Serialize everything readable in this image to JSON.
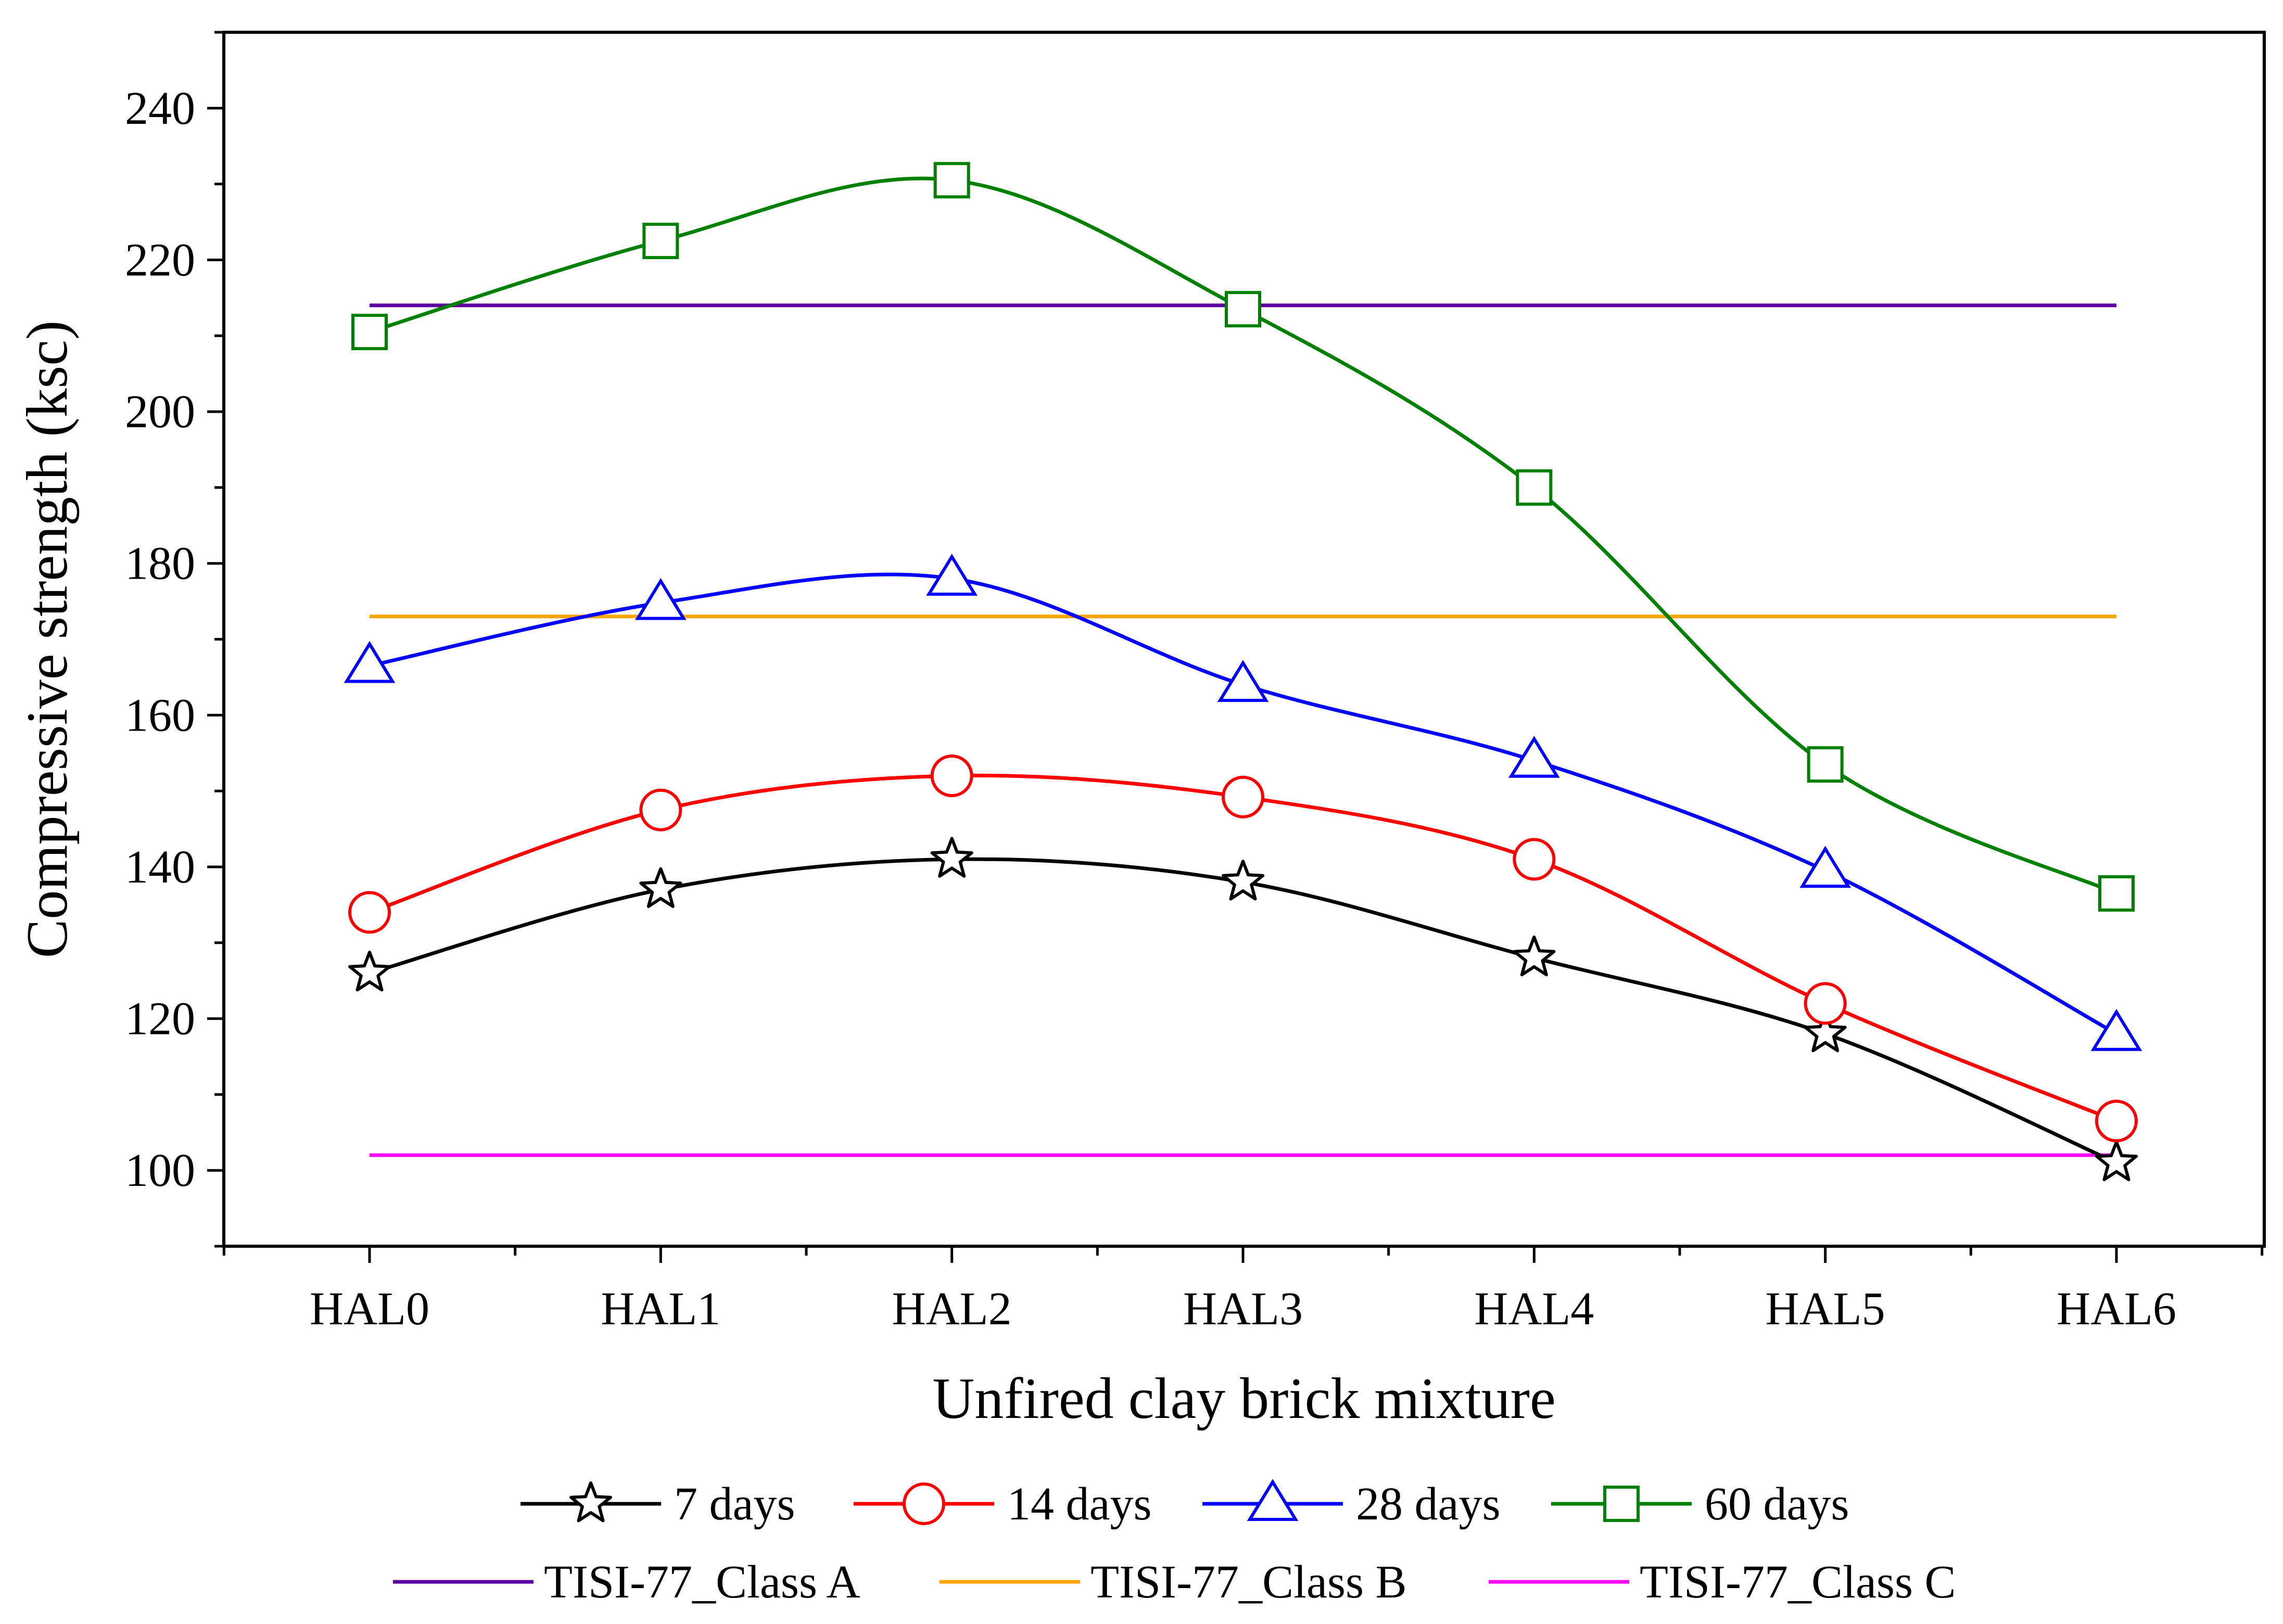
{
  "chart_data": {
    "type": "line",
    "title": "",
    "xlabel": "Unfired clay brick mixture",
    "ylabel": "Compressive strength (ksc)",
    "categories": [
      "HAL0",
      "HAL1",
      "HAL2",
      "HAL3",
      "HAL4",
      "HAL5",
      "HAL6"
    ],
    "ylim": [
      90,
      250
    ],
    "yticks": [
      100,
      120,
      140,
      160,
      180,
      200,
      220,
      240
    ],
    "grid": false,
    "legend_position": "bottom",
    "series": [
      {
        "name": "7 days",
        "marker": "star",
        "color": "#000000",
        "values": [
          126,
          137,
          141,
          138,
          128,
          118,
          101
        ]
      },
      {
        "name": "14 days",
        "marker": "circle",
        "color": "#ff0000",
        "values": [
          134,
          147.5,
          152,
          149.2,
          141,
          122,
          106.5
        ]
      },
      {
        "name": "28 days",
        "marker": "triangle",
        "color": "#0000ff",
        "values": [
          166.5,
          174.8,
          178,
          164,
          154,
          139.5,
          118
        ]
      },
      {
        "name": "60 days",
        "marker": "square",
        "color": "#008000",
        "values": [
          210.5,
          222.5,
          230.5,
          213.5,
          190,
          153.5,
          136.5
        ]
      }
    ],
    "reference_lines": [
      {
        "name": "TISI-77_Class A",
        "value": 214,
        "color": "#5a00a0"
      },
      {
        "name": "TISI-77_Class B",
        "value": 173,
        "color": "#ffa500"
      },
      {
        "name": "TISI-77_Class C",
        "value": 102,
        "color": "#ff00ff"
      }
    ]
  }
}
